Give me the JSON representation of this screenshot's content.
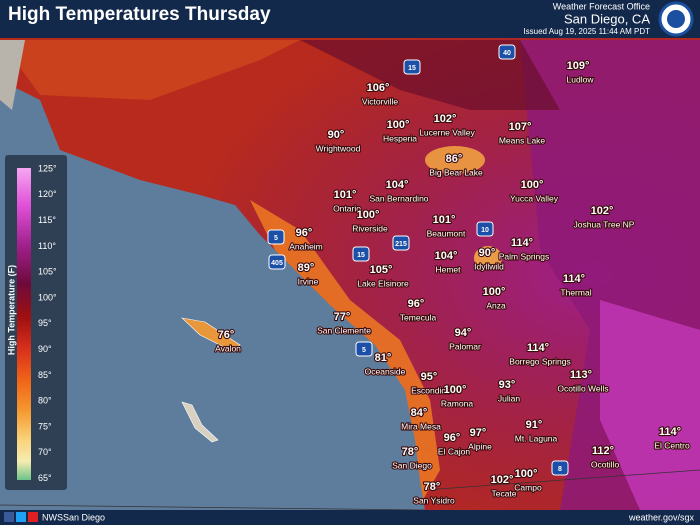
{
  "header": {
    "title": "High Temperatures Thursday",
    "office": "Weather Forecast Office",
    "location": "San Diego, CA",
    "issued": "Issued Aug 19, 2025 11:44 AM PDT"
  },
  "legend": {
    "title": "High Temperature (F)",
    "labels": [
      "125°",
      "120°",
      "115°",
      "110°",
      "105°",
      "100°",
      "95°",
      "90°",
      "85°",
      "80°",
      "75°",
      "70°",
      "65°"
    ]
  },
  "places": [
    {
      "temp": "109°",
      "name": "Ludlow"
    },
    {
      "temp": "106°",
      "name": "Victorville"
    },
    {
      "temp": "100°",
      "name": "Hesperia"
    },
    {
      "temp": "102°",
      "name": "Lucerne Valley"
    },
    {
      "temp": "107°",
      "name": "Means Lake"
    },
    {
      "temp": "90°",
      "name": "Wrightwood"
    },
    {
      "temp": "86°",
      "name": "Big Bear Lake"
    },
    {
      "temp": "104°",
      "name": "San Bernardino"
    },
    {
      "temp": "100°",
      "name": "Yucca Valley"
    },
    {
      "temp": "101°",
      "name": "Ontario"
    },
    {
      "temp": "100°",
      "name": "Riverside"
    },
    {
      "temp": "102°",
      "name": "Joshua Tree NP"
    },
    {
      "temp": "101°",
      "name": "Beaumont"
    },
    {
      "temp": "96°",
      "name": "Anaheim"
    },
    {
      "temp": "114°",
      "name": "Palm Springs"
    },
    {
      "temp": "104°",
      "name": "Hemet"
    },
    {
      "temp": "90°",
      "name": "Idyllwild"
    },
    {
      "temp": "89°",
      "name": "Irvine"
    },
    {
      "temp": "105°",
      "name": "Lake Elsinore"
    },
    {
      "temp": "114°",
      "name": "Thermal"
    },
    {
      "temp": "100°",
      "name": "Anza"
    },
    {
      "temp": "96°",
      "name": "Temecula"
    },
    {
      "temp": "77°",
      "name": "San Clemente"
    },
    {
      "temp": "76°",
      "name": "Avalon"
    },
    {
      "temp": "94°",
      "name": "Palomar"
    },
    {
      "temp": "114°",
      "name": "Borrego Springs"
    },
    {
      "temp": "81°",
      "name": "Oceanside"
    },
    {
      "temp": "95°",
      "name": "Escondido"
    },
    {
      "temp": "113°",
      "name": "Ocotillo Wells"
    },
    {
      "temp": "100°",
      "name": "Ramona"
    },
    {
      "temp": "93°",
      "name": "Julian"
    },
    {
      "temp": "84°",
      "name": "Mira Mesa"
    },
    {
      "temp": "91°",
      "name": "Mt. Laguna"
    },
    {
      "temp": "97°",
      "name": "Alpine"
    },
    {
      "temp": "96°",
      "name": "El Cajon"
    },
    {
      "temp": "114°",
      "name": "El Centro"
    },
    {
      "temp": "78°",
      "name": "San Diego"
    },
    {
      "temp": "112°",
      "name": "Ocotillo"
    },
    {
      "temp": "100°",
      "name": "Campo"
    },
    {
      "temp": "102°",
      "name": "Tecate"
    },
    {
      "temp": "78°",
      "name": "San Ysidro"
    }
  ],
  "highways": [
    "15",
    "40",
    "15",
    "5",
    "405",
    "215",
    "10",
    "5",
    "8"
  ],
  "footer": {
    "social": "NWSSan Diego",
    "url": "weather.gov/sgx"
  }
}
